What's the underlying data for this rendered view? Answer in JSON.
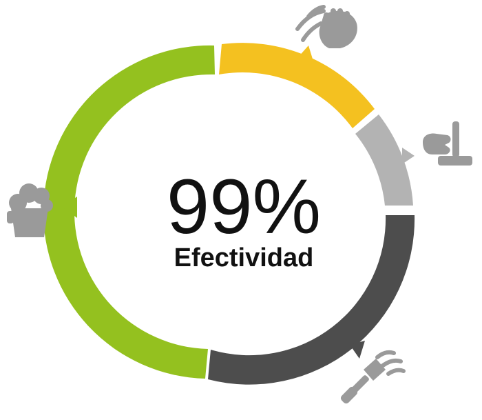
{
  "center": {
    "percent": "99%",
    "label": "Efectividad"
  },
  "segments": [
    {
      "name": "wipe-step",
      "color": "#f4c120",
      "icon": "hand-wiping-icon"
    },
    {
      "name": "mop-step",
      "color": "#b3b3b3",
      "icon": "mop-bucket-icon"
    },
    {
      "name": "scrape-step",
      "color": "#4d4d4d",
      "icon": "scraper-icon"
    },
    {
      "name": "foam-step",
      "color": "#94c11f",
      "icon": "foam-bucket-icon"
    }
  ],
  "colors": {
    "icon": "#9a9a9a",
    "text": "#111111",
    "background": "#ffffff"
  }
}
